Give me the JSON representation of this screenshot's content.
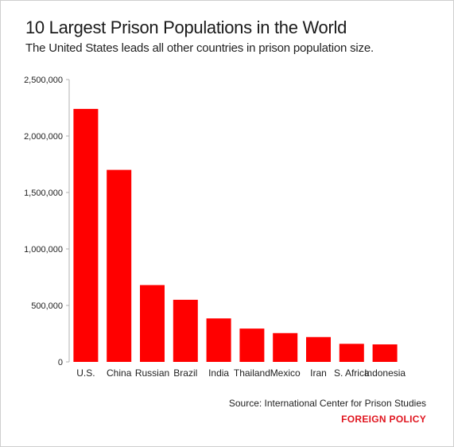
{
  "header": {
    "title": "10 Largest Prison Populations in the World",
    "subtitle": "The United States leads all other countries in prison population size."
  },
  "footer": {
    "source": "Source: International Center for Prison Studies",
    "brand": "FOREIGN POLICY"
  },
  "colors": {
    "bar": "#ff0000",
    "brand": "#e0141e",
    "axis": "#b0b0b0"
  },
  "chart_data": {
    "type": "bar",
    "title": "10 Largest Prison Populations in the World",
    "subtitle": "The United States leads all other countries in prison population size.",
    "xlabel": "",
    "ylabel": "",
    "categories": [
      "U.S.",
      "China",
      "Russian",
      "Brazil",
      "India",
      "Thailand",
      "Mexico",
      "Iran",
      "S. Africa",
      "Indonesia"
    ],
    "values": [
      2240000,
      1700000,
      680000,
      550000,
      385000,
      295000,
      255000,
      220000,
      160000,
      155000
    ],
    "ylim": [
      0,
      2500000
    ],
    "yticks": [
      0,
      500000,
      1000000,
      1500000,
      2000000,
      2500000
    ],
    "ytick_labels": [
      "0",
      "500,000",
      "1,000,000",
      "1,500,000",
      "2,000,000",
      "2,500,000"
    ],
    "grid": false,
    "legend": "none"
  }
}
